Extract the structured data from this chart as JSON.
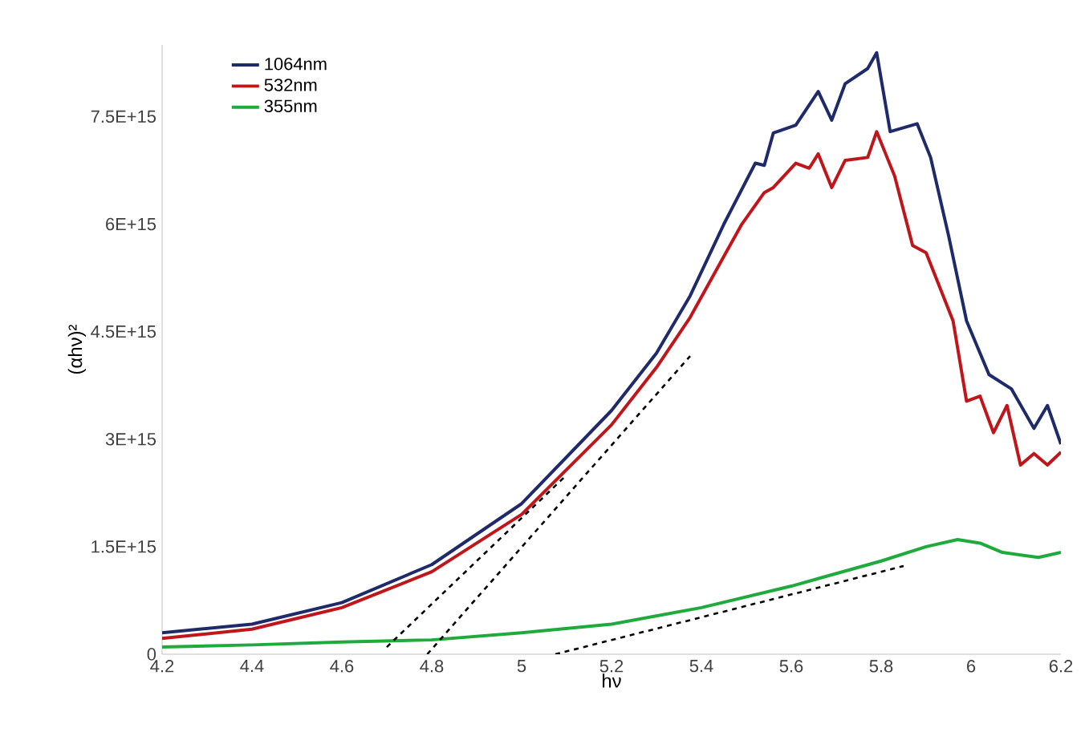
{
  "chart_data": {
    "type": "line",
    "xlabel": "hν",
    "ylabel": "(αhν)²",
    "xlim": [
      4.2,
      6.2
    ],
    "xticks": [
      4.2,
      4.4,
      4.6,
      4.8,
      5,
      5.2,
      5.4,
      5.6,
      5.8,
      6,
      6.2
    ],
    "ylim": [
      0,
      8500000000000000.0
    ],
    "yticks": [
      {
        "value": 0,
        "label": "0"
      },
      {
        "value": 1500000000000000.0,
        "label": "1.5E+15"
      },
      {
        "value": 3000000000000000.0,
        "label": "3E+15"
      },
      {
        "value": 4500000000000000.0,
        "label": "4.5E+15"
      },
      {
        "value": 6000000000000000.0,
        "label": "6E+15"
      },
      {
        "value": 7500000000000000.0,
        "label": "7.5E+15"
      }
    ],
    "grid": false,
    "legend": "top left",
    "marker": "none",
    "line_style": "solid",
    "series": [
      {
        "name": "1064nm",
        "color": "#1f2a6b",
        "x": [
          4.2,
          4.4,
          4.6,
          4.8,
          5.0,
          5.2,
          5.3,
          5.375,
          5.45,
          5.52,
          5.54,
          5.56,
          5.61,
          5.66,
          5.69,
          5.72,
          5.77,
          5.79,
          5.82,
          5.88,
          5.91,
          5.95,
          5.99,
          6.04,
          6.09,
          6.14,
          6.17,
          6.2
        ],
        "values": [
          300000000000000.0,
          420000000000000.0,
          720000000000000.0,
          1250000000000000.0,
          2100000000000000.0,
          3400000000000000.0,
          4200000000000000.0,
          5000000000000000.0,
          6000000000000000.0,
          6850000000000000.0,
          6820000000000000.0,
          7270000000000000.0,
          7380000000000000.0,
          7850000000000000.0,
          7450000000000000.0,
          7960000000000000.0,
          8170000000000000.0,
          8390000000000000.0,
          7290000000000000.0,
          7400000000000000.0,
          6930000000000000.0,
          5840000000000000.0,
          4650000000000000.0,
          3900000000000000.0,
          3700000000000000.0,
          3150000000000000.0,
          3470000000000000.0,
          2930000000000000.0
        ]
      },
      {
        "name": "532nm",
        "color": "#c0161b",
        "x": [
          4.2,
          4.4,
          4.6,
          4.8,
          5.0,
          5.2,
          5.3,
          5.375,
          5.45,
          5.49,
          5.54,
          5.56,
          5.61,
          5.64,
          5.66,
          5.69,
          5.72,
          5.77,
          5.79,
          5.83,
          5.87,
          5.9,
          5.96,
          5.99,
          6.02,
          6.05,
          6.08,
          6.11,
          6.14,
          6.17,
          6.2
        ],
        "values": [
          220000000000000.0,
          350000000000000.0,
          650000000000000.0,
          1150000000000000.0,
          1950000000000000.0,
          3200000000000000.0,
          4000000000000000.0,
          4700000000000000.0,
          5550000000000000.0,
          6000000000000000.0,
          6440000000000000.0,
          6510000000000000.0,
          6850000000000000.0,
          6780000000000000.0,
          6980000000000000.0,
          6510000000000000.0,
          6890000000000000.0,
          6930000000000000.0,
          7290000000000000.0,
          6670000000000000.0,
          5700000000000000.0,
          5600000000000000.0,
          4650000000000000.0,
          3530000000000000.0,
          3600000000000000.0,
          3090000000000000.0,
          3470000000000000.0,
          2640000000000000.0,
          2800000000000000.0,
          2640000000000000.0,
          2820000000000000.0
        ]
      },
      {
        "name": "355nm",
        "color": "#1faa3c",
        "x": [
          4.2,
          4.4,
          4.6,
          4.8,
          5.0,
          5.2,
          5.4,
          5.6,
          5.8,
          5.9,
          5.97,
          6.02,
          6.07,
          6.15,
          6.2
        ],
        "values": [
          100000000000000.0,
          130000000000000.0,
          170000000000000.0,
          200000000000000.0,
          300000000000000.0,
          420000000000000.0,
          650000000000000.0,
          950000000000000.0,
          1300000000000000.0,
          1500000000000000.0,
          1600000000000000.0,
          1550000000000000.0,
          1420000000000000.0,
          1350000000000000.0,
          1420000000000000.0
        ]
      },
      {
        "type": "line",
        "color": "#000000",
        "line_style": "dashed",
        "x": [
          4.7,
          5.1
        ],
        "values": [
          100000000000000.0,
          2500000000000000.0
        ]
      },
      {
        "type": "line",
        "color": "#000000",
        "line_style": "dashed",
        "x": [
          4.79,
          5.375
        ],
        "values": [
          0,
          4160000000000000.0
        ]
      },
      {
        "type": "line",
        "color": "#000000",
        "line_style": "dashed",
        "x": [
          5.075,
          5.85
        ],
        "values": [
          0,
          1230000000000000.0
        ]
      }
    ]
  }
}
